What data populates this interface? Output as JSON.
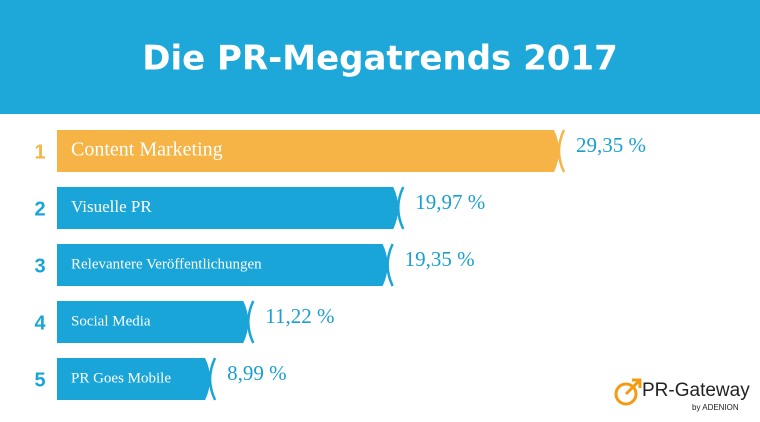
{
  "title": "Die PR-Megatrends 2017",
  "chart_data": {
    "type": "bar",
    "orientation": "horizontal",
    "ranks": [
      1,
      2,
      3,
      4,
      5
    ],
    "categories": [
      "Content Marketing",
      "Visuelle PR",
      "Relevantere Veröffentlichungen",
      "Social Media",
      "PR Goes Mobile"
    ],
    "values": [
      29.35,
      19.97,
      19.35,
      11.22,
      8.99
    ],
    "value_labels": [
      "29,35 %",
      "19,97 %",
      "19,35 %",
      "11,22 %",
      "8,99 %"
    ],
    "colors": [
      "#f5b445",
      "#1aa5d8",
      "#1aa5d8",
      "#1aa5d8",
      "#1aa5d8"
    ]
  },
  "logo": {
    "name": "PR-Gateway",
    "by": "by ADENION"
  }
}
